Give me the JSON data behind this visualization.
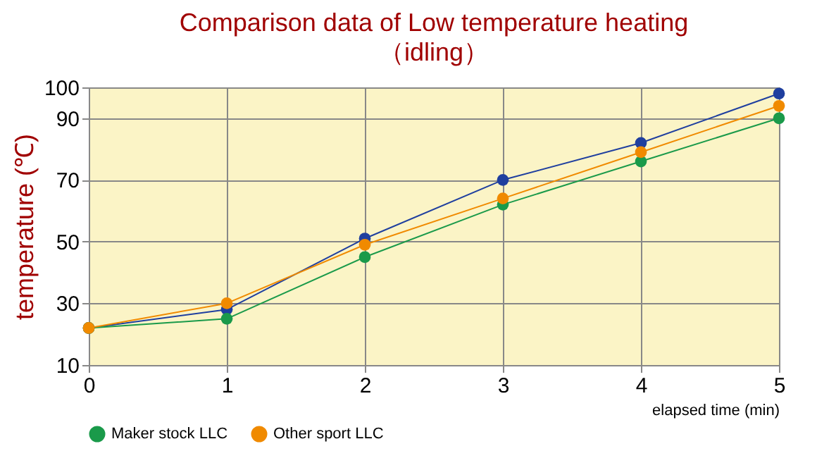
{
  "chart_data": {
    "type": "line",
    "title": "Comparison data of Low temperature heating",
    "subtitle": "（idling）",
    "xlabel": "elapsed time (min)",
    "ylabel": "temperature (℃)",
    "x": [
      0,
      1,
      2,
      3,
      4,
      5
    ],
    "series": [
      {
        "color": "#1f3f9f",
        "values": [
          22,
          28,
          51,
          70,
          82,
          98
        ]
      },
      {
        "name": "Maker stock LLC",
        "color": "#1a9a4a",
        "values": [
          22,
          25,
          45,
          62,
          76,
          90
        ]
      },
      {
        "name": "Other sport LLC",
        "color": "#f08a00",
        "values": [
          22,
          30,
          49,
          64,
          79,
          94
        ]
      }
    ],
    "xlim": [
      0,
      5
    ],
    "xticks": [
      0,
      1,
      2,
      3,
      4,
      5
    ],
    "ylim": [
      10,
      100
    ],
    "yticks": [
      10,
      30,
      50,
      70,
      90,
      100
    ],
    "grid": true,
    "legend": "bottom",
    "marker": "circle",
    "line_style": "solid"
  }
}
